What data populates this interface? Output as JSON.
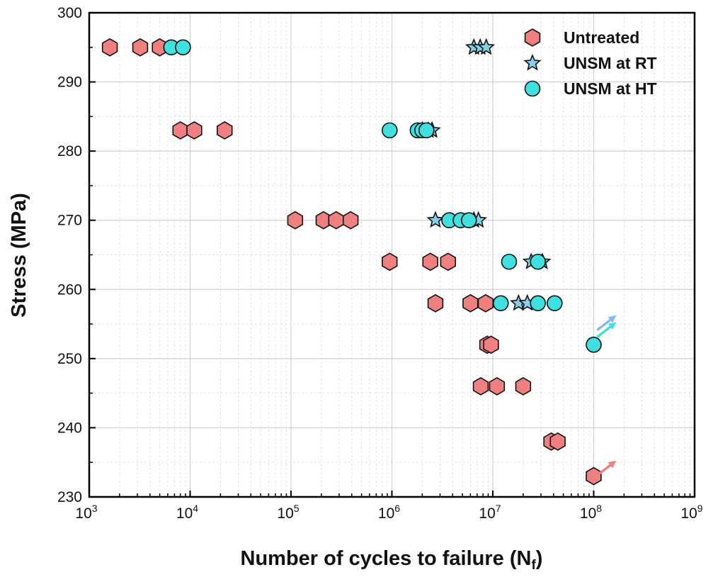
{
  "chart_data": {
    "type": "scatter",
    "title": "",
    "xlabel": "Number of cycles to failure",
    "xlabel_subscript": "(N",
    "xlabel_sub": "f",
    "xlabel_close": ")",
    "ylabel": "Stress (MPa)",
    "xscale": "log",
    "xlim": [
      1000,
      1000000000
    ],
    "ylim": [
      230,
      300
    ],
    "x_ticks": [
      {
        "base": "10",
        "exp": "3"
      },
      {
        "base": "10",
        "exp": "4"
      },
      {
        "base": "10",
        "exp": "5"
      },
      {
        "base": "10",
        "exp": "6"
      },
      {
        "base": "10",
        "exp": "7"
      },
      {
        "base": "10",
        "exp": "8"
      },
      {
        "base": "10",
        "exp": "9"
      }
    ],
    "y_ticks": [
      "230",
      "240",
      "250",
      "260",
      "270",
      "280",
      "290",
      "300"
    ],
    "grid": true,
    "legend_position": "top-right",
    "series": [
      {
        "name": "Untreated",
        "marker": "hexagon",
        "color": "#f08080",
        "points": [
          [
            1600,
            295
          ],
          [
            3200,
            295
          ],
          [
            5000,
            295
          ],
          [
            8000,
            283
          ],
          [
            11000,
            283
          ],
          [
            22000,
            283
          ],
          [
            110000,
            270
          ],
          [
            210000,
            270
          ],
          [
            280000,
            270
          ],
          [
            390000,
            270
          ],
          [
            950000,
            264
          ],
          [
            2400000,
            264
          ],
          [
            3600000,
            264
          ],
          [
            2700000,
            258
          ],
          [
            6000000,
            258
          ],
          [
            8500000,
            258
          ],
          [
            8800000,
            252
          ],
          [
            9600000,
            252
          ],
          [
            7600000,
            246
          ],
          [
            11000000,
            246
          ],
          [
            20000000,
            246
          ],
          [
            38000000,
            238
          ],
          [
            44000000,
            238
          ],
          [
            100000000,
            233
          ]
        ]
      },
      {
        "name": "UNSM at RT",
        "marker": "star",
        "color": "#87ceeb",
        "points": [
          [
            6500000,
            295
          ],
          [
            7500000,
            295
          ],
          [
            8600000,
            295
          ],
          [
            2000000,
            283
          ],
          [
            2300000,
            283
          ],
          [
            2500000,
            283
          ],
          [
            2700000,
            270
          ],
          [
            6500000,
            270
          ],
          [
            7200000,
            270
          ],
          [
            24000000,
            264
          ],
          [
            31000000,
            264
          ],
          [
            18000000,
            258
          ],
          [
            22000000,
            258
          ]
        ]
      },
      {
        "name": "UNSM at HT",
        "marker": "circle",
        "color": "#3fe0e0",
        "points": [
          [
            6500,
            295
          ],
          [
            8500,
            295
          ],
          [
            950000,
            283
          ],
          [
            1800000,
            283
          ],
          [
            2000000,
            283
          ],
          [
            2200000,
            283
          ],
          [
            3700000,
            270
          ],
          [
            4800000,
            270
          ],
          [
            5800000,
            270
          ],
          [
            14500000,
            264
          ],
          [
            28000000,
            264
          ],
          [
            12000000,
            258
          ],
          [
            28000000,
            258
          ],
          [
            41000000,
            258
          ],
          [
            100000000,
            252
          ]
        ]
      }
    ],
    "runouts": [
      {
        "series": "UNSM at RT",
        "x": 100000000,
        "y": 252,
        "color": "#87b8f0",
        "dy": 2.0
      },
      {
        "series": "UNSM at HT",
        "x": 100000000,
        "y": 252,
        "color": "#3fe0e0",
        "dy": 1.0
      },
      {
        "series": "Untreated",
        "x": 100000000,
        "y": 233,
        "color": "#f08080",
        "dy": 0.0
      }
    ]
  }
}
